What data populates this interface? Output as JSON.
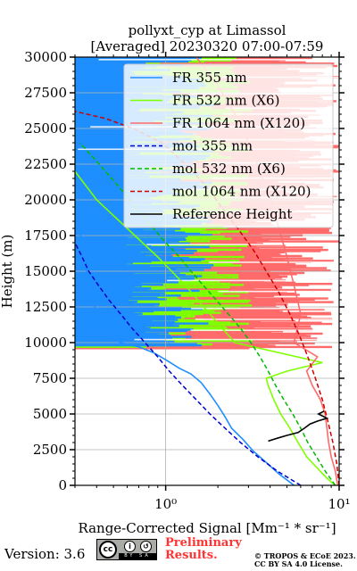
{
  "chart_data": {
    "type": "line",
    "title_line1": "pollyxt_cyp at Limassol",
    "title_line2": "[Averaged] 20230320 07:00-07:59",
    "xlabel": "Range-Corrected Signal [Mm⁻¹ * sr⁻¹]",
    "ylabel": "Height (m)",
    "x_scale": "log",
    "xlim": [
      0.3,
      10
    ],
    "ylim": [
      0,
      30000
    ],
    "x_ticks": [
      {
        "value": 1,
        "label": "10⁰"
      },
      {
        "value": 10,
        "label": "10¹"
      }
    ],
    "y_ticks": [
      0,
      2500,
      5000,
      7500,
      10000,
      12500,
      15000,
      17500,
      20000,
      22500,
      25000,
      27500,
      30000
    ],
    "y_tick_labels": [
      "0",
      "2500",
      "5000",
      "7500",
      "10000",
      "12500",
      "15000",
      "17500",
      "20000",
      "22500",
      "25000",
      "27500",
      "30000"
    ],
    "grid": true,
    "legend_position": "top-right",
    "series": [
      {
        "name": "FR 355 nm",
        "style": "solid",
        "color": "#1f8fff",
        "points": [
          [
            5.5,
            0
          ],
          [
            4.5,
            800
          ],
          [
            3.8,
            1600
          ],
          [
            3.2,
            2400
          ],
          [
            2.8,
            3200
          ],
          [
            2.4,
            4000
          ],
          [
            2.2,
            4800
          ],
          [
            2.0,
            5600
          ],
          [
            1.8,
            6400
          ],
          [
            1.6,
            7200
          ],
          [
            1.4,
            7800
          ],
          [
            1.2,
            8200
          ],
          [
            1.0,
            8800
          ],
          [
            0.85,
            9300
          ],
          [
            0.7,
            9700
          ],
          [
            0.55,
            10000
          ],
          [
            0.45,
            10500
          ],
          [
            0.4,
            12000
          ],
          [
            0.35,
            15000
          ],
          [
            0.3,
            20000
          ]
        ]
      },
      {
        "name": "FR 532 nm (X6)",
        "style": "solid",
        "color": "#7fff00",
        "points": [
          [
            9.5,
            0
          ],
          [
            8.5,
            500
          ],
          [
            7.5,
            1200
          ],
          [
            6.5,
            2000
          ],
          [
            5.8,
            3000
          ],
          [
            5.2,
            4000
          ],
          [
            4.6,
            5000
          ],
          [
            4.2,
            6000
          ],
          [
            3.9,
            7000
          ],
          [
            3.8,
            7500
          ],
          [
            5.0,
            8000
          ],
          [
            8.0,
            8600
          ],
          [
            2.5,
            10000
          ],
          [
            1.8,
            12000
          ],
          [
            1.3,
            14000
          ],
          [
            0.9,
            16000
          ],
          [
            0.6,
            18000
          ],
          [
            0.4,
            20000
          ],
          [
            0.3,
            22000
          ]
        ]
      },
      {
        "name": "FR 1064 nm (X120)",
        "style": "solid",
        "color": "#ff6a6a",
        "points": [
          [
            9.8,
            0
          ],
          [
            9.5,
            1000
          ],
          [
            9.0,
            2000
          ],
          [
            8.7,
            3000
          ],
          [
            8.5,
            4000
          ],
          [
            8.3,
            5000
          ],
          [
            7.8,
            6000
          ],
          [
            7.0,
            7000
          ],
          [
            6.5,
            8000
          ],
          [
            7.5,
            9000
          ],
          [
            5.5,
            10000
          ],
          [
            6.0,
            12000
          ],
          [
            5.5,
            14000
          ],
          [
            5.0,
            16000
          ],
          [
            4.5,
            18000
          ],
          [
            4.0,
            20000
          ],
          [
            3.5,
            22000
          ],
          [
            3.0,
            24000
          ],
          [
            2.5,
            26000
          ],
          [
            2.0,
            28000
          ],
          [
            1.5,
            30000
          ]
        ]
      },
      {
        "name": "mol 355 nm",
        "style": "dashed",
        "color": "#0000cc",
        "points": [
          [
            6.0,
            0
          ],
          [
            4.4,
            1000
          ],
          [
            3.4,
            2000
          ],
          [
            2.7,
            3000
          ],
          [
            2.2,
            4000
          ],
          [
            1.8,
            5000
          ],
          [
            1.5,
            6000
          ],
          [
            1.25,
            7000
          ],
          [
            1.05,
            8000
          ],
          [
            0.9,
            9000
          ],
          [
            0.76,
            10000
          ],
          [
            0.64,
            11000
          ],
          [
            0.55,
            12000
          ],
          [
            0.47,
            13000
          ],
          [
            0.41,
            14000
          ],
          [
            0.36,
            15000
          ],
          [
            0.33,
            16000
          ],
          [
            0.3,
            17000
          ]
        ]
      },
      {
        "name": "mol 532 nm (X6)",
        "style": "dashed",
        "color": "#00bb00",
        "points": [
          [
            9.5,
            0
          ],
          [
            8.3,
            1000
          ],
          [
            7.4,
            2000
          ],
          [
            6.6,
            3000
          ],
          [
            6.0,
            4000
          ],
          [
            5.4,
            5000
          ],
          [
            4.8,
            6000
          ],
          [
            4.3,
            7000
          ],
          [
            3.9,
            8000
          ],
          [
            3.5,
            9000
          ],
          [
            3.1,
            10000
          ],
          [
            2.7,
            11000
          ],
          [
            2.3,
            12000
          ],
          [
            1.95,
            13000
          ],
          [
            1.65,
            14000
          ],
          [
            1.4,
            15000
          ],
          [
            1.2,
            16000
          ],
          [
            1.0,
            17000
          ],
          [
            0.85,
            18000
          ],
          [
            0.72,
            19000
          ],
          [
            0.62,
            20000
          ],
          [
            0.53,
            21000
          ],
          [
            0.45,
            22000
          ],
          [
            0.38,
            23000
          ],
          [
            0.32,
            24000
          ]
        ]
      },
      {
        "name": "mol 1064 nm (X120)",
        "style": "dashed",
        "color": "#cc0000",
        "points": [
          [
            10,
            0
          ],
          [
            9.7,
            1500
          ],
          [
            9.2,
            3000
          ],
          [
            8.6,
            4500
          ],
          [
            8.0,
            6000
          ],
          [
            7.3,
            7500
          ],
          [
            6.6,
            9000
          ],
          [
            5.9,
            10500
          ],
          [
            5.2,
            12000
          ],
          [
            4.5,
            13500
          ],
          [
            3.8,
            15000
          ],
          [
            3.2,
            16500
          ],
          [
            2.6,
            18000
          ],
          [
            2.1,
            19500
          ],
          [
            1.7,
            21000
          ],
          [
            1.3,
            22500
          ],
          [
            0.95,
            24000
          ],
          [
            0.65,
            25000
          ],
          [
            0.45,
            25700
          ],
          [
            0.3,
            26200
          ]
        ]
      },
      {
        "name": "Reference Height",
        "style": "solid",
        "color": "#000000",
        "points": [
          [
            3.9,
            3100
          ],
          [
            4.4,
            3300
          ],
          [
            5.0,
            3500
          ],
          [
            5.8,
            3700
          ],
          [
            6.3,
            4000
          ],
          [
            6.8,
            4300
          ],
          [
            7.5,
            4500
          ],
          [
            8.5,
            4700
          ],
          [
            7.6,
            5000
          ],
          [
            8.2,
            5200
          ]
        ]
      }
    ]
  },
  "footer": {
    "version": "Version: 3.6",
    "license_badge": "cc by sa",
    "prelim_line1": "Preliminary",
    "prelim_line2": "Results.",
    "copyright_line1": "© TROPOS & ECoE 2023.",
    "copyright_line2": "CC BY SA 4.0 License."
  }
}
